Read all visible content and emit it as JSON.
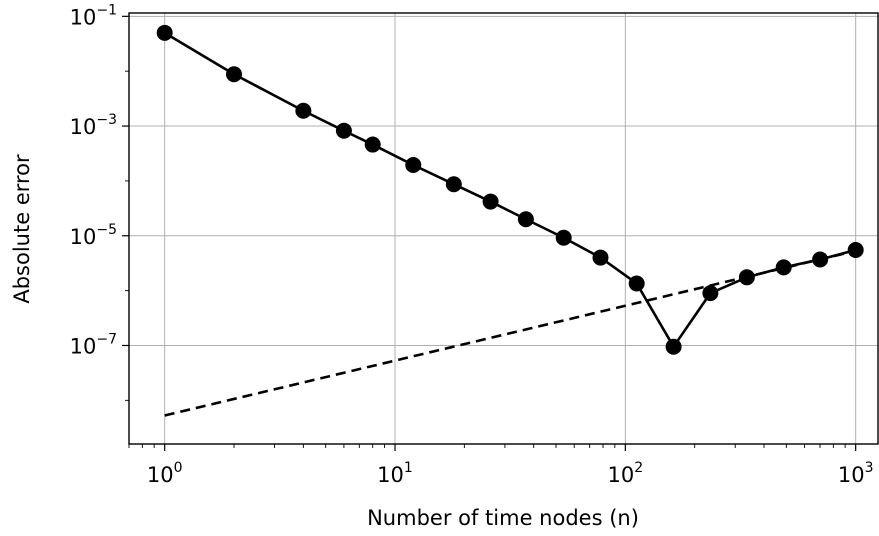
{
  "chart_data": {
    "type": "line",
    "title": "",
    "xlabel": "Number of time nodes (n)",
    "ylabel": "Absolute error",
    "xscale": "log",
    "yscale": "log",
    "xlim": [
      0.7,
      1250
    ],
    "ylim": [
      1.6e-09,
      0.115
    ],
    "grid": true,
    "x_ticks": [
      {
        "value": 1,
        "base": "10",
        "exp": "0"
      },
      {
        "value": 10,
        "base": "10",
        "exp": "1"
      },
      {
        "value": 100,
        "base": "10",
        "exp": "2"
      },
      {
        "value": 1000,
        "base": "10",
        "exp": "3"
      }
    ],
    "y_ticks": [
      {
        "value": 1e-07,
        "base": "10",
        "exp": "−7"
      },
      {
        "value": 1e-05,
        "base": "10",
        "exp": "−5"
      },
      {
        "value": 0.001,
        "base": "10",
        "exp": "−3"
      },
      {
        "value": 0.1,
        "base": "10",
        "exp": "−1"
      }
    ],
    "series": [
      {
        "style": "solid-markers",
        "color": "#000000",
        "x": [
          1,
          2,
          4,
          6,
          8,
          12,
          18,
          26,
          37,
          54,
          78,
          112,
          162,
          234,
          337,
          487,
          701,
          1000
        ],
        "y": [
          0.05,
          0.0088,
          0.0019,
          0.00082,
          0.00046,
          0.000195,
          8.7e-05,
          4.2e-05,
          2e-05,
          9.2e-06,
          4e-06,
          1.35e-06,
          9.5e-08,
          9e-07,
          1.75e-06,
          2.65e-06,
          3.7e-06,
          5.5e-06
        ]
      },
      {
        "style": "dashed",
        "color": "#000000",
        "x": [
          1,
          1000
        ],
        "y": [
          5.3e-09,
          5.3e-06
        ]
      }
    ]
  }
}
